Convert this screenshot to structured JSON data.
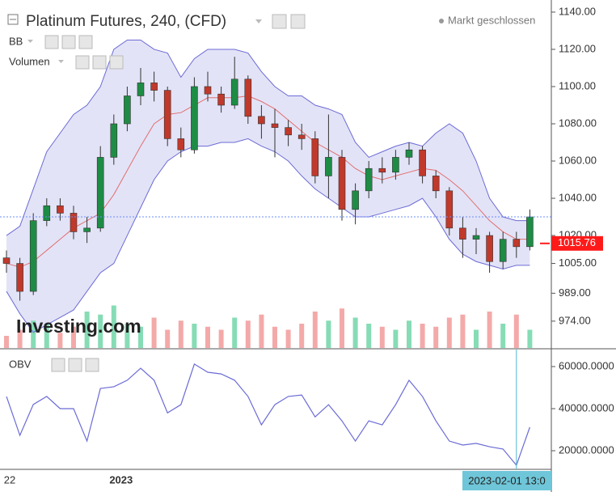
{
  "chart_data": [
    {
      "type": "candlestick",
      "title": "Platinum Futures, 240, (CFD)",
      "status": "Markt geschlossen",
      "watermark": "Investing.com",
      "indicators": [
        "BB",
        "Volumen"
      ],
      "categories": [
        "22",
        null,
        null,
        null,
        null,
        null,
        null,
        null,
        "2023",
        null,
        null,
        null,
        null,
        null,
        null,
        null,
        null,
        null,
        null,
        null,
        null,
        null,
        null,
        null,
        null,
        null,
        null,
        null,
        null,
        null,
        null,
        null,
        null,
        null,
        null,
        null,
        null,
        null,
        "2023-02-01 13:0",
        null
      ],
      "crosshair": true,
      "open": [
        1008,
        1005,
        990,
        1028,
        1036,
        1032,
        1022,
        1024,
        1062,
        1080,
        1095,
        1102,
        1098,
        1072,
        1066,
        1100,
        1096,
        1090,
        1104,
        1084,
        1080,
        1078,
        1074,
        1072,
        1052,
        1062,
        1034,
        1044,
        1056,
        1054,
        1062,
        1066,
        1052,
        1044,
        1024,
        1018,
        1020,
        1006,
        1018,
        1014
      ],
      "high": [
        1012,
        1008,
        1032,
        1040,
        1040,
        1036,
        1030,
        1068,
        1085,
        1100,
        1110,
        1108,
        1100,
        1078,
        1105,
        1108,
        1100,
        1116,
        1106,
        1090,
        1088,
        1082,
        1080,
        1076,
        1085,
        1066,
        1048,
        1060,
        1062,
        1066,
        1070,
        1068,
        1055,
        1046,
        1030,
        1024,
        1022,
        1022,
        1022,
        1034
      ],
      "low": [
        1000,
        985,
        988,
        1025,
        1028,
        1018,
        1016,
        1022,
        1058,
        1076,
        1090,
        1092,
        1068,
        1062,
        1064,
        1092,
        1086,
        1088,
        1080,
        1072,
        1062,
        1068,
        1066,
        1048,
        1040,
        1028,
        1026,
        1040,
        1048,
        1050,
        1058,
        1048,
        1040,
        1020,
        1008,
        1010,
        1000,
        1002,
        1008,
        1012
      ],
      "close": [
        1005,
        990,
        1028,
        1036,
        1032,
        1022,
        1024,
        1062,
        1080,
        1095,
        1102,
        1098,
        1072,
        1066,
        1100,
        1096,
        1090,
        1104,
        1084,
        1080,
        1078,
        1074,
        1072,
        1052,
        1062,
        1034,
        1044,
        1056,
        1054,
        1062,
        1066,
        1052,
        1044,
        1024,
        1018,
        1020,
        1006,
        1018,
        1014,
        1030
      ],
      "up_color": "#1e8c45",
      "down_color": "#c0392b",
      "bands": {
        "upper": [
          1020,
          1025,
          1045,
          1065,
          1075,
          1085,
          1090,
          1100,
          1120,
          1125,
          1125,
          1120,
          1118,
          1105,
          1115,
          1120,
          1120,
          1120,
          1118,
          1108,
          1100,
          1095,
          1095,
          1090,
          1088,
          1085,
          1070,
          1062,
          1065,
          1068,
          1070,
          1068,
          1075,
          1080,
          1075,
          1060,
          1040,
          1030,
          1028,
          1028
        ],
        "middle": [
          1005,
          1003,
          1006,
          1012,
          1018,
          1024,
          1028,
          1032,
          1042,
          1055,
          1068,
          1080,
          1085,
          1086,
          1090,
          1094,
          1094,
          1094,
          1095,
          1092,
          1088,
          1082,
          1076,
          1070,
          1066,
          1062,
          1056,
          1052,
          1050,
          1052,
          1054,
          1056,
          1055,
          1050,
          1044,
          1036,
          1028,
          1022,
          1018,
          1018
        ],
        "lower": [
          990,
          978,
          968,
          972,
          976,
          980,
          990,
          1000,
          1005,
          1020,
          1035,
          1050,
          1060,
          1065,
          1068,
          1068,
          1070,
          1070,
          1072,
          1068,
          1065,
          1060,
          1052,
          1045,
          1040,
          1035,
          1030,
          1030,
          1032,
          1034,
          1036,
          1040,
          1030,
          1018,
          1010,
          1006,
          1004,
          1002,
          1004,
          1004
        ],
        "band_color": "#6b6bd6",
        "fill_color": "#dcdcf5",
        "middle_color": "#e07070"
      },
      "volume": [
        20,
        30,
        45,
        40,
        25,
        35,
        60,
        55,
        70,
        40,
        35,
        50,
        30,
        45,
        40,
        35,
        30,
        50,
        45,
        55,
        35,
        30,
        40,
        60,
        45,
        65,
        50,
        40,
        35,
        30,
        45,
        40,
        35,
        50,
        55,
        30,
        60,
        40,
        55,
        30
      ],
      "volume_up_color": "#86dcb5",
      "volume_down_color": "#f4a9a9",
      "ylim": [
        959.6,
        1146.5
      ],
      "yticks": [
        {
          "value": 1140,
          "label": "1140.00"
        },
        {
          "value": 1120,
          "label": "1120.00"
        },
        {
          "value": 1100,
          "label": "1100.00"
        },
        {
          "value": 1080,
          "label": "1080.00"
        },
        {
          "value": 1060,
          "label": "1060.00"
        },
        {
          "value": 1040,
          "label": "1040.00"
        },
        {
          "value": 1020,
          "label": "1020.00"
        },
        {
          "value": 1005,
          "label": "1005.00"
        },
        {
          "value": 989,
          "label": "989.00"
        },
        {
          "value": 974,
          "label": "974.00"
        }
      ],
      "last_price": {
        "value": 1015.76,
        "label": "1015.76"
      },
      "last_price_color": "#ff1a1a"
    },
    {
      "type": "line",
      "title": "OBV",
      "color": "#6b6bd6",
      "values": [
        45800,
        27300,
        42000,
        45800,
        40000,
        40000,
        24600,
        49600,
        50400,
        53500,
        59200,
        53500,
        38000,
        41900,
        61200,
        57300,
        56500,
        53500,
        45800,
        32300,
        41900,
        45800,
        46500,
        36100,
        41900,
        34200,
        24600,
        34200,
        32300,
        41900,
        53500,
        45800,
        34200,
        24600,
        22700,
        23500,
        21900,
        20800,
        13100,
        31200
      ],
      "ylim": [
        11150,
        68080
      ],
      "yticks": [
        {
          "value": 60000,
          "label": "60000.0000"
        },
        {
          "value": 40000,
          "label": "40000.0000"
        },
        {
          "value": 20000,
          "label": "20000.0000"
        }
      ]
    }
  ]
}
